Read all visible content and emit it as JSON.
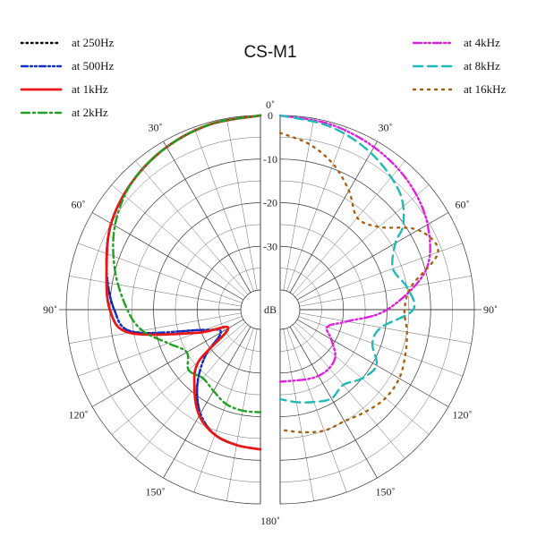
{
  "chart_data": {
    "type": "line",
    "subtype": "polar",
    "title": "CS-M1",
    "radial_unit": "dB",
    "radial_ticks": [
      "0",
      "-10",
      "-20",
      "-30"
    ],
    "angle_ticks": [
      "0˚",
      "30˚",
      "60˚",
      "90˚",
      "120˚",
      "150˚",
      "180˚"
    ],
    "angle_range": [
      0,
      180
    ],
    "db_range": [
      -40,
      0
    ],
    "legend_left": [
      "at 250Hz",
      "at 500Hz",
      "at 1kHz",
      "at 2kHz"
    ],
    "legend_right": [
      "at 4kHz",
      "at 8kHz",
      "at 16kHz"
    ],
    "series": [
      {
        "name": "at 250Hz",
        "side": "left",
        "color": "#000000",
        "dash": "1.5 4",
        "angles": [
          0,
          15,
          30,
          45,
          60,
          75,
          90,
          100,
          110,
          120,
          130,
          140,
          150,
          160,
          170,
          180
        ],
        "db": [
          0,
          -0.5,
          -1.5,
          -3,
          -5,
          -8,
          -11,
          -15,
          -31,
          -34,
          -28,
          -22,
          -17,
          -14,
          -13,
          -12.5
        ]
      },
      {
        "name": "at 500Hz",
        "side": "left",
        "color": "#1030d0",
        "dash": "7 3 2 3 2 3",
        "angles": [
          0,
          15,
          30,
          45,
          60,
          75,
          90,
          100,
          110,
          120,
          130,
          140,
          150,
          160,
          170,
          180
        ],
        "db": [
          0,
          -0.5,
          -1.5,
          -3,
          -5,
          -8,
          -11,
          -15,
          -31,
          -34,
          -28,
          -22,
          -17,
          -14,
          -13,
          -12.5
        ]
      },
      {
        "name": "at 1kHz",
        "side": "left",
        "color": "#e81818",
        "dash": "",
        "angles": [
          0,
          15,
          30,
          45,
          60,
          75,
          90,
          100,
          110,
          120,
          130,
          140,
          150,
          160,
          170,
          180
        ],
        "db": [
          0,
          -0.5,
          -1.5,
          -3,
          -5,
          -8,
          -10,
          -14,
          -29,
          -36,
          -26,
          -21,
          -16.5,
          -14,
          -13,
          -12.5
        ]
      },
      {
        "name": "at 2kHz",
        "side": "left",
        "color": "#20a020",
        "dash": "9 4 2 4",
        "angles": [
          0,
          15,
          30,
          45,
          60,
          75,
          90,
          100,
          110,
          120,
          130,
          140,
          150,
          160,
          170,
          180
        ],
        "db": [
          0,
          -0.5,
          -1.5,
          -3,
          -6,
          -10,
          -14,
          -17,
          -22,
          -25,
          -23,
          -24,
          -23,
          -21.5,
          -21,
          -21
        ]
      },
      {
        "name": "at 4kHz",
        "side": "right",
        "color": "#e020e0",
        "dash": "9 3 2 3 2 3",
        "angles": [
          0,
          15,
          30,
          45,
          60,
          75,
          90,
          100,
          110,
          120,
          130,
          140,
          150,
          160,
          180
        ],
        "db": [
          0,
          -0.5,
          -1.5,
          -3,
          -5.5,
          -10,
          -20,
          -29,
          -33,
          -31,
          -28,
          -27,
          -27,
          -27.5,
          -28
        ]
      },
      {
        "name": "at 8kHz",
        "side": "right",
        "color": "#20b8b8",
        "dash": "10 6",
        "angles": [
          0,
          15,
          30,
          45,
          55,
          60,
          70,
          80,
          90,
          100,
          110,
          120,
          130,
          140,
          150,
          160,
          170,
          180
        ],
        "db": [
          0,
          -1,
          -3,
          -6,
          -10,
          -14,
          -17,
          -15,
          -14,
          -21,
          -22,
          -19,
          -20,
          -22,
          -21,
          -22,
          -23,
          -24
        ]
      },
      {
        "name": "at 16kHz",
        "side": "right",
        "color": "#a86010",
        "dash": "2 6",
        "angles": [
          0,
          10,
          20,
          30,
          40,
          50,
          60,
          70,
          80,
          90,
          100,
          110,
          120,
          130,
          140,
          150,
          160,
          170,
          180
        ],
        "db": [
          -4,
          -6,
          -9,
          -13,
          -17,
          -15,
          -8,
          -6,
          -14,
          -16,
          -15,
          -14,
          -13,
          -13,
          -14,
          -15,
          -15,
          -16,
          -17
        ]
      }
    ]
  }
}
